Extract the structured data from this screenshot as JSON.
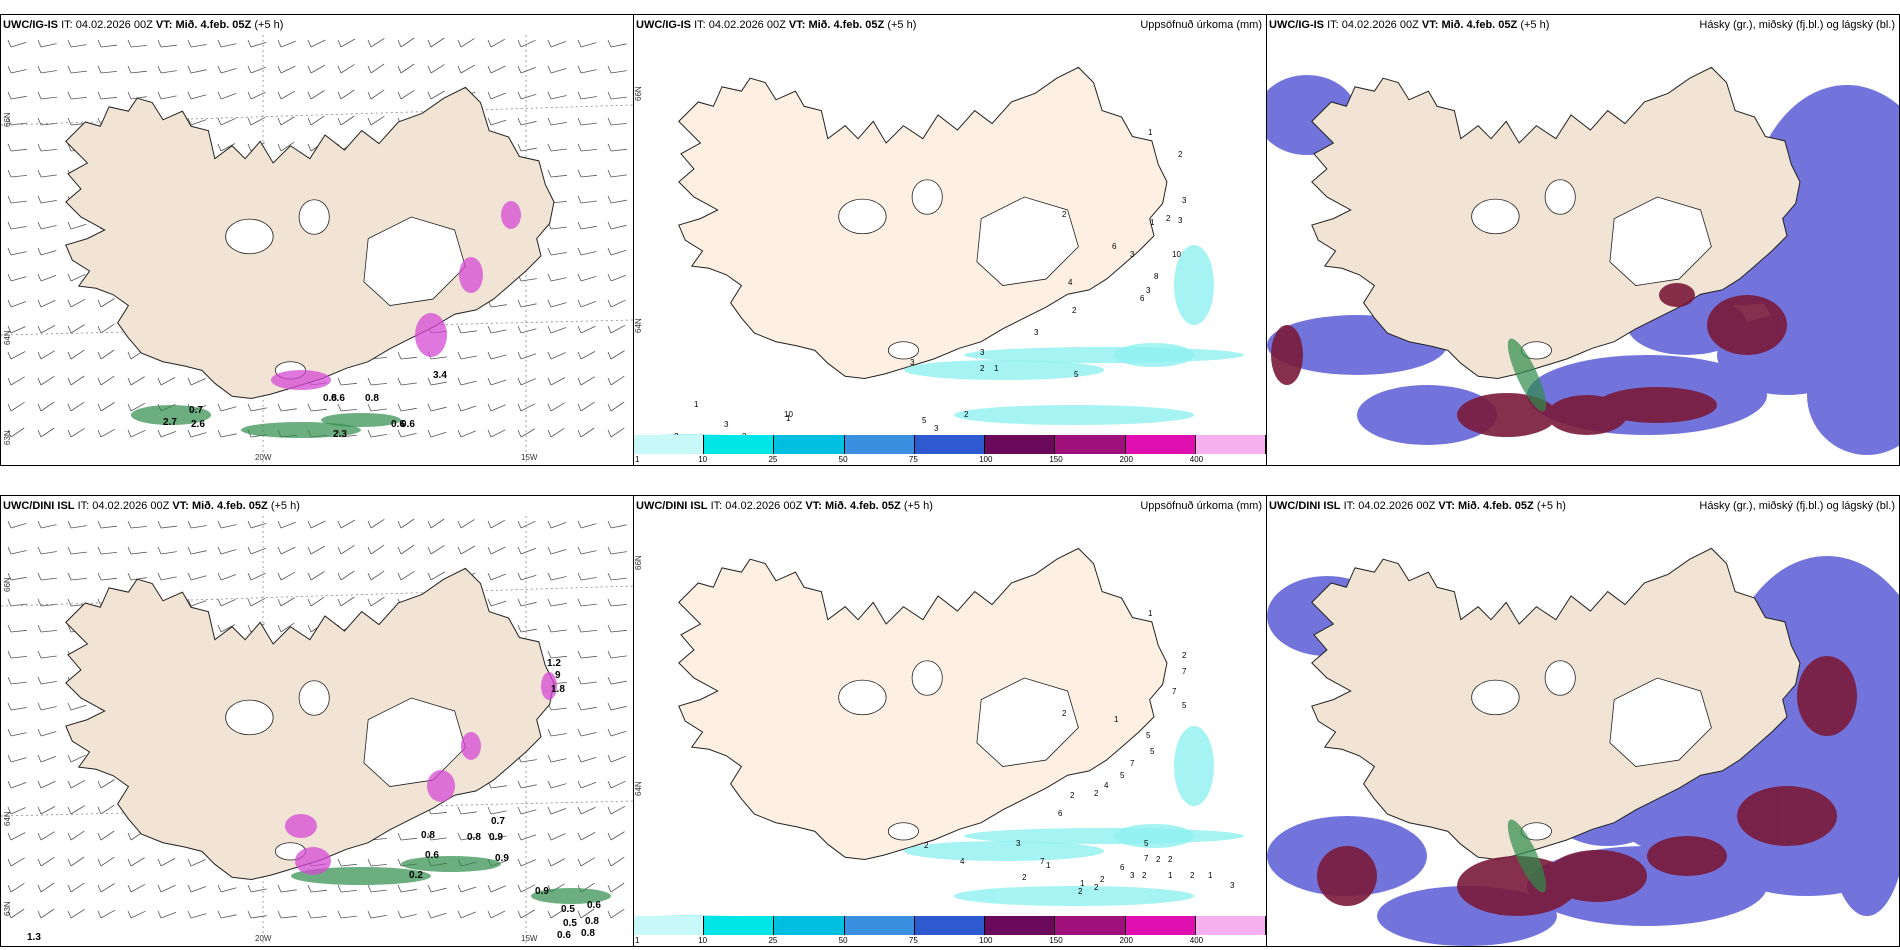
{
  "colors": {
    "land": "#f1e4d4",
    "landPrecip": "#fdf0e2",
    "coast": "#222222",
    "windBarb": "#555555",
    "snowGreen": "#2e8b4a",
    "pinkPrecip": "#d44ad4",
    "cyanPrecip": "#8ef0f0",
    "lowCloud": "#5b5bd6",
    "highCloud": "#7a1a3a"
  },
  "panels": {
    "top_left": {
      "model": "UWC/IG-IS",
      "it_label": "IT:",
      "it_value": "04.02.2026 00Z",
      "vt_label": "VT: Mið. 4.feb. 05Z",
      "lead": "(+5 h)"
    },
    "top_mid": {
      "model": "UWC/IG-IS",
      "it_label": "IT:",
      "it_value": "04.02.2026 00Z",
      "vt_label": "VT: Mið. 4.feb. 05Z",
      "lead": "(+5 h)",
      "field": "Uppsöfnuð úrkoma (mm)"
    },
    "top_right": {
      "model": "UWC/IG-IS",
      "it_label": "IT:",
      "it_value": "04.02.2026 00Z",
      "vt_label": "VT: Mið. 4.feb. 05Z",
      "lead": "(+5 h)",
      "field": "Hásky (gr.), miðský (fj.bl.) og lágský (bl.)"
    },
    "bot_left": {
      "model": "UWC/DINI ISL",
      "it_label": "IT:",
      "it_value": "04.02.2026 00Z",
      "vt_label": "VT: Mið. 4.feb. 05Z",
      "lead": "(+5 h)"
    },
    "bot_mid": {
      "model": "UWC/DINI ISL",
      "it_label": "IT:",
      "it_value": "04.02.2026 00Z",
      "vt_label": "VT: Mið. 4.feb. 05Z",
      "lead": "(+5 h)",
      "field": "Uppsöfnuð úrkoma (mm)"
    },
    "bot_right": {
      "model": "UWC/DINI ISL",
      "it_label": "IT:",
      "it_value": "04.02.2026 00Z",
      "vt_label": "VT: Mið. 4.feb. 05Z",
      "lead": "(+5 h)",
      "field": "Hásky (gr.), miðský (fj.bl.) og lágský (bl.)"
    }
  },
  "axes": {
    "lat_66": "66N",
    "lat_64": "64N",
    "lat_63": "63N",
    "lon_20": "20W",
    "lon_15": "15W"
  },
  "colorbar": {
    "ticks": [
      "1",
      "10",
      "25",
      "50",
      "75",
      "100",
      "150",
      "200",
      "400"
    ],
    "colors": [
      "#c8f8f8",
      "#00e5e5",
      "#00bfe0",
      "#3a8fe0",
      "#2d5ad0",
      "#6b0a5a",
      "#a0107a",
      "#e010b0",
      "#f7b0f0"
    ]
  },
  "top_mid_labels": [
    "1",
    "2",
    "3",
    "1",
    "2",
    "3",
    "6",
    "3",
    "10",
    "8",
    "3",
    "6",
    "2",
    "4",
    "2",
    "3",
    "3",
    "2",
    "1",
    "5",
    "3",
    "5",
    "3",
    "2",
    "3",
    "4",
    "10",
    "1",
    "1",
    "2",
    "3",
    "2",
    "1",
    "4",
    "2",
    "3",
    "2",
    "2",
    "1",
    "2",
    "2",
    "4",
    "3"
  ],
  "bot_mid_labels": [
    "1",
    "2",
    "7",
    "7",
    "5",
    "1",
    "5",
    "2",
    "5",
    "7",
    "5",
    "4",
    "2",
    "2",
    "6",
    "7",
    "3",
    "2",
    "4",
    "2",
    "5",
    "7",
    "6",
    "2",
    "2",
    "2",
    "3",
    "2",
    "1",
    "2",
    "2",
    "1",
    "1",
    "2",
    "1",
    "3",
    "2"
  ],
  "top_left_labels": [
    "0.7",
    "2.7",
    "2.6",
    "0.8",
    "0.6",
    "0.8",
    "0.6",
    "2.3",
    "0.6",
    "3.4"
  ],
  "bot_left_labels": [
    "1.2",
    "9",
    "1.8",
    "0.7",
    "0.9",
    "0.8",
    "0.8",
    "0.6",
    "0.9",
    "0.2",
    "0.9",
    "0.5",
    "0.6",
    "0.8",
    "0.5",
    "0.6",
    "0.8",
    "1.3"
  ]
}
